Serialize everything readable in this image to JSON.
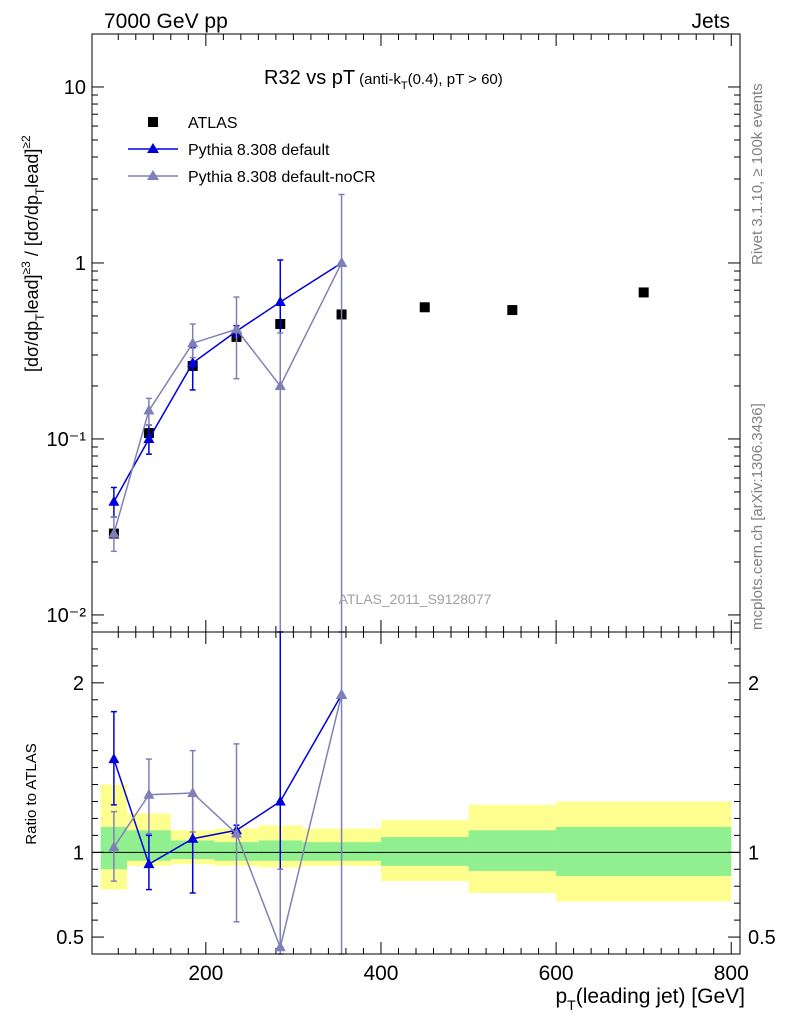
{
  "header": {
    "left": "7000 GeV pp",
    "right": "Jets"
  },
  "side_labels": {
    "rivet": "Rivet 3.1.10, ≥ 100k events",
    "site": "mcplots.cern.ch [arXiv:1306.3436]"
  },
  "chart_data": [
    {
      "type": "scatter",
      "panel": "main",
      "title_main": "R32 vs pT",
      "title_sub": "(anti-k",
      "title_sub_T": "T",
      "title_sub_rest": "(0.4), pT > 60)",
      "ylabel": "[dσ/dpᵀlead]≥3 / [dσ/dpᵀlead]≥2",
      "ylabel_parts": {
        "open": "[dσ/dp",
        "T": "T",
        "lead": "lead]",
        "ge3": "≥3",
        "mid": " / [dσ/dp",
        "ge2": "≥2"
      },
      "yscale": "log",
      "ylim": [
        0.008,
        20
      ],
      "xlim": [
        70,
        810
      ],
      "yticks": [
        "10⁻²",
        "10⁻¹",
        "1",
        "10"
      ],
      "analysis_label": "ATLAS_2011_S9128077",
      "legend_position": "top-left",
      "series": [
        {
          "name": "ATLAS",
          "color": "#000000",
          "marker": "square",
          "x": [
            95,
            135,
            185,
            235,
            285,
            355,
            450,
            550,
            700
          ],
          "y": [
            0.029,
            0.108,
            0.26,
            0.38,
            0.45,
            0.51,
            0.56,
            0.54,
            0.68
          ]
        },
        {
          "name": "Pythia 8.308 default",
          "color": "#0000dd",
          "marker": "triangle",
          "x": [
            95,
            135,
            185,
            235,
            285,
            355
          ],
          "y": [
            0.044,
            0.1,
            0.27,
            0.41,
            0.6,
            1.0
          ],
          "err_low": [
            0.036,
            0.082,
            0.19,
            0.38,
            0.2,
            1.0
          ],
          "err_high": [
            0.053,
            0.12,
            0.33,
            0.44,
            1.04,
            1.0
          ]
        },
        {
          "name": "Pythia 8.308 default-noCR",
          "color": "#8080b8",
          "marker": "triangle",
          "x": [
            95,
            135,
            185,
            235,
            285,
            355
          ],
          "y": [
            0.029,
            0.145,
            0.35,
            0.42,
            0.2,
            1.0
          ],
          "err_low": [
            0.023,
            0.12,
            0.29,
            0.22,
            0.0001,
            0.0001
          ],
          "err_high": [
            0.036,
            0.17,
            0.45,
            0.64,
            0.4,
            2.45
          ]
        }
      ]
    },
    {
      "type": "scatter",
      "panel": "ratio",
      "ylabel": "Ratio to ATLAS",
      "xlabel_parts": {
        "p": "p",
        "T": "T",
        "rest": "(leading jet) [GeV]"
      },
      "ylim": [
        0.4,
        2.3
      ],
      "xlim": [
        70,
        810
      ],
      "yticks": [
        "0.5",
        "1",
        "2"
      ],
      "xticks": [
        "200",
        "400",
        "600",
        "800"
      ],
      "bands": [
        {
          "x0": 80,
          "x1": 110,
          "g_lo": 0.9,
          "g_hi": 1.15,
          "y_lo": 0.78,
          "y_hi": 1.4
        },
        {
          "x0": 110,
          "x1": 160,
          "g_lo": 0.95,
          "g_hi": 1.13,
          "y_lo": 0.92,
          "y_hi": 1.23
        },
        {
          "x0": 160,
          "x1": 210,
          "g_lo": 0.96,
          "g_hi": 1.07,
          "y_lo": 0.93,
          "y_hi": 1.13
        },
        {
          "x0": 210,
          "x1": 260,
          "g_lo": 0.95,
          "g_hi": 1.06,
          "y_lo": 0.92,
          "y_hi": 1.14
        },
        {
          "x0": 260,
          "x1": 310,
          "g_lo": 0.95,
          "g_hi": 1.07,
          "y_lo": 0.91,
          "y_hi": 1.16
        },
        {
          "x0": 310,
          "x1": 400,
          "g_lo": 0.95,
          "g_hi": 1.06,
          "y_lo": 0.92,
          "y_hi": 1.14
        },
        {
          "x0": 400,
          "x1": 500,
          "g_lo": 0.92,
          "g_hi": 1.09,
          "y_lo": 0.83,
          "y_hi": 1.19
        },
        {
          "x0": 500,
          "x1": 600,
          "g_lo": 0.89,
          "g_hi": 1.13,
          "y_lo": 0.76,
          "y_hi": 1.28
        },
        {
          "x0": 600,
          "x1": 800,
          "g_lo": 0.86,
          "g_hi": 1.15,
          "y_lo": 0.71,
          "y_hi": 1.3
        }
      ],
      "band_colors": {
        "inner": "#90f090",
        "outer": "#ffff90"
      },
      "series": [
        {
          "name": "Pythia 8.308 default",
          "color": "#0000dd",
          "x": [
            95,
            135,
            185,
            235,
            285,
            355
          ],
          "y": [
            1.55,
            0.93,
            1.08,
            1.13,
            1.3,
            1.93
          ],
          "err_low": [
            1.28,
            0.78,
            0.76,
            1.1,
            0.44,
            1.93
          ],
          "err_high": [
            1.83,
            1.1,
            1.34,
            1.16,
            2.3,
            1.93
          ]
        },
        {
          "name": "Pythia 8.308 default-noCR",
          "color": "#8080b8",
          "x": [
            95,
            135,
            185,
            235,
            285,
            355
          ],
          "y": [
            1.03,
            1.34,
            1.35,
            1.11,
            0.44,
            1.93
          ],
          "err_low": [
            0.83,
            1.11,
            1.12,
            0.59,
            0.3,
            0.3
          ],
          "err_high": [
            1.24,
            1.55,
            1.6,
            1.64,
            0.9,
            2.4
          ]
        }
      ]
    }
  ]
}
